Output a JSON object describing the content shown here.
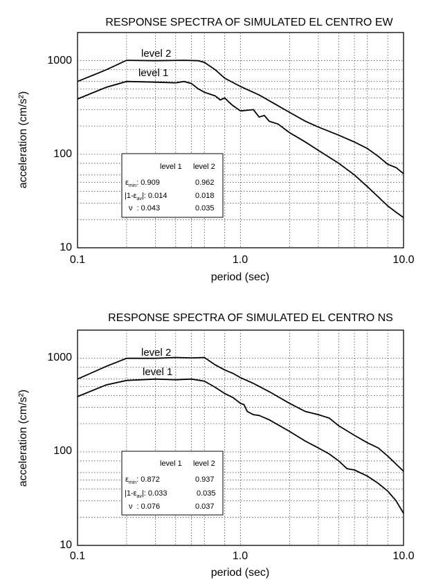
{
  "chart_data": [
    {
      "type": "line",
      "title": "RESPONSE SPECTRA OF SIMULATED EL CENTRO EW",
      "xlabel": "period (sec)",
      "ylabel": "acceleration (cm/s²)",
      "xscale": "log",
      "yscale": "log",
      "xlim": [
        0.1,
        10.0
      ],
      "ylim": [
        10,
        2000
      ],
      "xticks": [
        "0.1",
        "1.0",
        "10.0"
      ],
      "yticks": [
        "10",
        "100",
        "1000"
      ],
      "grid": true,
      "series": [
        {
          "name": "level 2",
          "x": [
            0.1,
            0.15,
            0.2,
            0.3,
            0.45,
            0.55,
            0.6,
            0.7,
            0.8,
            1.0,
            1.3,
            1.6,
            2.0,
            2.5,
            3.0,
            4.0,
            5.0,
            6.0,
            7.0,
            8.0,
            9.0,
            10.0
          ],
          "y": [
            600,
            800,
            1010,
            1000,
            1010,
            1000,
            960,
            800,
            650,
            530,
            430,
            350,
            280,
            225,
            195,
            160,
            135,
            115,
            95,
            78,
            72,
            62
          ]
        },
        {
          "name": "level 1",
          "x": [
            0.1,
            0.15,
            0.2,
            0.3,
            0.4,
            0.45,
            0.5,
            0.55,
            0.6,
            0.7,
            0.75,
            0.8,
            0.85,
            0.9,
            1.0,
            1.2,
            1.3,
            1.4,
            1.5,
            1.7,
            2.0,
            2.5,
            3.0,
            4.0,
            5.0,
            6.0,
            7.0,
            8.0,
            9.0,
            10.0
          ],
          "y": [
            390,
            520,
            600,
            590,
            580,
            600,
            570,
            500,
            460,
            420,
            380,
            400,
            360,
            330,
            290,
            300,
            250,
            260,
            225,
            210,
            170,
            135,
            110,
            80,
            60,
            45,
            35,
            28,
            24,
            21
          ]
        }
      ],
      "annotation_table": {
        "headers": [
          "level 1",
          "level 2"
        ],
        "rows": [
          {
            "label_main": "ε",
            "label_sub": "min",
            "label_tail": ": 0.909",
            "v2": "0.962"
          },
          {
            "label_main": "|1-ε",
            "label_sub": "av",
            "label_tail": "|: 0.014",
            "v2": "0.018"
          },
          {
            "label_main": "ν",
            "label_sub": "",
            "label_tail": ": 0.043",
            "v2": "0.035"
          }
        ]
      }
    },
    {
      "type": "line",
      "title": "RESPONSE SPECTRA OF SIMULATED EL CENTRO NS",
      "xlabel": "period (sec)",
      "ylabel": "acceleration (cm/s²)",
      "xscale": "log",
      "yscale": "log",
      "xlim": [
        0.1,
        10.0
      ],
      "ylim": [
        10,
        2000
      ],
      "xticks": [
        "0.1",
        "1.0",
        "10.0"
      ],
      "yticks": [
        "10",
        "100",
        "1000"
      ],
      "grid": true,
      "series": [
        {
          "name": "level 2",
          "x": [
            0.1,
            0.15,
            0.2,
            0.3,
            0.4,
            0.5,
            0.6,
            0.7,
            0.8,
            0.9,
            1.0,
            1.2,
            1.5,
            2.0,
            2.5,
            3.0,
            3.5,
            4.0,
            5.0,
            6.0,
            7.0,
            8.0,
            10.0
          ],
          "y": [
            600,
            820,
            1000,
            1000,
            1020,
            1010,
            1020,
            850,
            750,
            690,
            620,
            540,
            440,
            330,
            270,
            250,
            230,
            190,
            150,
            125,
            110,
            90,
            62
          ]
        },
        {
          "name": "level 1",
          "x": [
            0.1,
            0.15,
            0.2,
            0.3,
            0.4,
            0.5,
            0.6,
            0.7,
            0.8,
            0.9,
            1.0,
            1.05,
            1.1,
            1.2,
            1.3,
            1.5,
            2.0,
            2.5,
            3.0,
            3.5,
            4.0,
            4.5,
            5.0,
            6.0,
            7.0,
            8.0,
            9.0,
            10.0
          ],
          "y": [
            390,
            520,
            580,
            600,
            590,
            600,
            570,
            490,
            420,
            380,
            330,
            320,
            270,
            250,
            245,
            220,
            165,
            130,
            110,
            95,
            80,
            66,
            64,
            55,
            46,
            38,
            30,
            22
          ]
        }
      ],
      "annotation_table": {
        "headers": [
          "level 1",
          "level 2"
        ],
        "rows": [
          {
            "label_main": "ε",
            "label_sub": "min",
            "label_tail": ": 0.872",
            "v2": "0.937"
          },
          {
            "label_main": "|1-ε",
            "label_sub": "av",
            "label_tail": "|: 0.033",
            "v2": "0.035"
          },
          {
            "label_main": "ν",
            "label_sub": "",
            "label_tail": ": 0.076",
            "v2": "0.037"
          }
        ]
      }
    }
  ]
}
